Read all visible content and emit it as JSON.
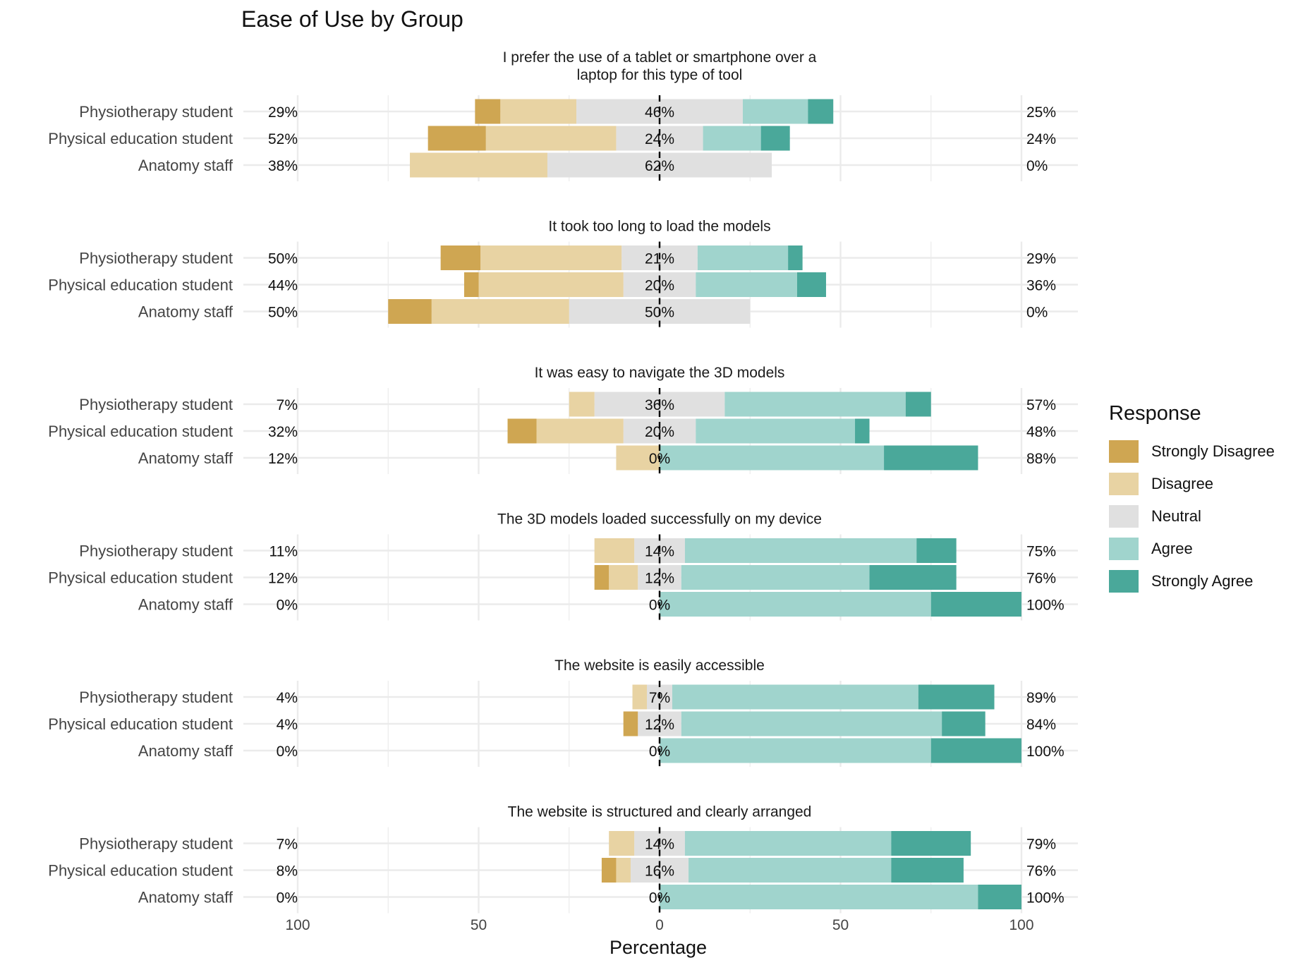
{
  "chart_data": {
    "type": "bar",
    "subtype": "diverging stacked bar (likert)",
    "title": "Ease of Use by Group",
    "xlabel": "Percentage",
    "ylabel": "",
    "xlim": [
      -100,
      100
    ],
    "x_ticks": [
      -100,
      -50,
      0,
      50,
      100
    ],
    "x_tick_labels": [
      "100",
      "50",
      "0",
      "50",
      "100"
    ],
    "grid": true,
    "legend": {
      "title": "Response",
      "position": "right",
      "items": [
        "Strongly Disagree",
        "Disagree",
        "Neutral",
        "Agree",
        "Strongly Agree"
      ]
    },
    "colors": {
      "Strongly Disagree": "#cfa652",
      "Disagree": "#e8d3a3",
      "Neutral": "#e0e0e0",
      "Agree": "#a0d4cd",
      "Strongly Agree": "#4aa89a"
    },
    "groups": [
      "Physiotherapy student",
      "Physical education student",
      "Anatomy staff"
    ],
    "panels": [
      {
        "question": "I prefer the use of a tablet or smartphone over a laptop for this type of tool",
        "rows": [
          {
            "group": "Physiotherapy student",
            "values": [
              7,
              21,
              46,
              18,
              7
            ],
            "low_label": "29%",
            "neutral_label": "46%",
            "high_label": "25%"
          },
          {
            "group": "Physical education student",
            "values": [
              16,
              36,
              24,
              16,
              8
            ],
            "low_label": "52%",
            "neutral_label": "24%",
            "high_label": "24%"
          },
          {
            "group": "Anatomy staff",
            "values": [
              0,
              38,
              62,
              0,
              0
            ],
            "low_label": "38%",
            "neutral_label": "62%",
            "high_label": "0%"
          }
        ]
      },
      {
        "question": "It took too long to load the models",
        "rows": [
          {
            "group": "Physiotherapy student",
            "values": [
              11,
              39,
              21,
              25,
              4
            ],
            "low_label": "50%",
            "neutral_label": "21%",
            "high_label": "29%"
          },
          {
            "group": "Physical education student",
            "values": [
              4,
              40,
              20,
              28,
              8
            ],
            "low_label": "44%",
            "neutral_label": "20%",
            "high_label": "36%"
          },
          {
            "group": "Anatomy staff",
            "values": [
              12,
              38,
              50,
              0,
              0
            ],
            "low_label": "50%",
            "neutral_label": "50%",
            "high_label": "0%"
          }
        ]
      },
      {
        "question": "It was easy to navigate the 3D models",
        "rows": [
          {
            "group": "Physiotherapy student",
            "values": [
              0,
              7,
              36,
              50,
              7
            ],
            "low_label": "7%",
            "neutral_label": "36%",
            "high_label": "57%"
          },
          {
            "group": "Physical education student",
            "values": [
              8,
              24,
              20,
              44,
              4
            ],
            "low_label": "32%",
            "neutral_label": "20%",
            "high_label": "48%"
          },
          {
            "group": "Anatomy staff",
            "values": [
              0,
              12,
              0,
              62,
              26
            ],
            "low_label": "12%",
            "neutral_label": "0%",
            "high_label": "88%"
          }
        ]
      },
      {
        "question": "The 3D models loaded successfully on my device",
        "rows": [
          {
            "group": "Physiotherapy student",
            "values": [
              0,
              11,
              14,
              64,
              11
            ],
            "low_label": "11%",
            "neutral_label": "14%",
            "high_label": "75%"
          },
          {
            "group": "Physical education student",
            "values": [
              4,
              8,
              12,
              52,
              24
            ],
            "low_label": "12%",
            "neutral_label": "12%",
            "high_label": "76%"
          },
          {
            "group": "Anatomy staff",
            "values": [
              0,
              0,
              0,
              75,
              25
            ],
            "low_label": "0%",
            "neutral_label": "0%",
            "high_label": "100%"
          }
        ]
      },
      {
        "question": "The website is easily accessible",
        "rows": [
          {
            "group": "Physiotherapy student",
            "values": [
              0,
              4,
              7,
              68,
              21
            ],
            "low_label": "4%",
            "neutral_label": "7%",
            "high_label": "89%"
          },
          {
            "group": "Physical education student",
            "values": [
              4,
              0,
              12,
              72,
              12
            ],
            "low_label": "4%",
            "neutral_label": "12%",
            "high_label": "84%"
          },
          {
            "group": "Anatomy staff",
            "values": [
              0,
              0,
              0,
              75,
              25
            ],
            "low_label": "0%",
            "neutral_label": "0%",
            "high_label": "100%"
          }
        ]
      },
      {
        "question": "The website is structured and clearly arranged",
        "rows": [
          {
            "group": "Physiotherapy student",
            "values": [
              0,
              7,
              14,
              57,
              22
            ],
            "low_label": "7%",
            "neutral_label": "14%",
            "high_label": "79%"
          },
          {
            "group": "Physical education student",
            "values": [
              4,
              4,
              16,
              56,
              20
            ],
            "low_label": "8%",
            "neutral_label": "16%",
            "high_label": "76%"
          },
          {
            "group": "Anatomy staff",
            "values": [
              0,
              0,
              0,
              88,
              12
            ],
            "low_label": "0%",
            "neutral_label": "0%",
            "high_label": "100%"
          }
        ]
      }
    ]
  }
}
